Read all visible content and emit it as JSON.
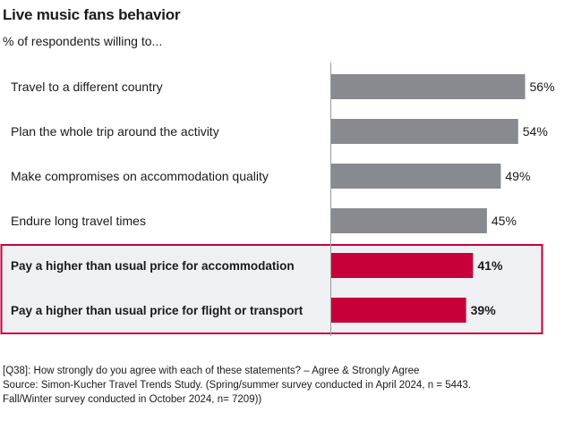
{
  "header": {
    "title": "Live music fans behavior",
    "subtitle": "% of respondents willing to..."
  },
  "chart_data": {
    "type": "bar",
    "orientation": "horizontal",
    "title": "Live music fans behavior",
    "subtitle": "% of respondents willing to...",
    "categories": [
      "Travel to a different country",
      "Plan the whole trip around the activity",
      "Make compromises on accommodation quality",
      "Endure long travel times",
      "Pay a higher than usual price for accommodation",
      "Pay a higher than usual price for flight or transport"
    ],
    "values": [
      56,
      54,
      49,
      45,
      41,
      39
    ],
    "data_labels": [
      "56%",
      "54%",
      "49%",
      "45%",
      "41%",
      "39%"
    ],
    "highlighted": [
      false,
      false,
      false,
      false,
      true,
      true
    ],
    "xlim": [
      0,
      60
    ],
    "grid": false,
    "legend": "none"
  },
  "colors": {
    "bar_default": "#878b90",
    "bar_highlight": "#c8003a",
    "highlight_fill": "#eef0f4",
    "highlight_border": "#c8003a",
    "axis": "#9a9a9a"
  },
  "footnote": {
    "question": "[Q38]: How strongly do you agree with each of these statements? – Agree & Strongly Agree",
    "source_line1": "Source:  Simon-Kucher Travel Trends Study. (Spring/summer survey conducted in April 2024, n = 5443.",
    "source_line2": "Fall/Winter survey conducted in October 2024, n= 7209))"
  }
}
